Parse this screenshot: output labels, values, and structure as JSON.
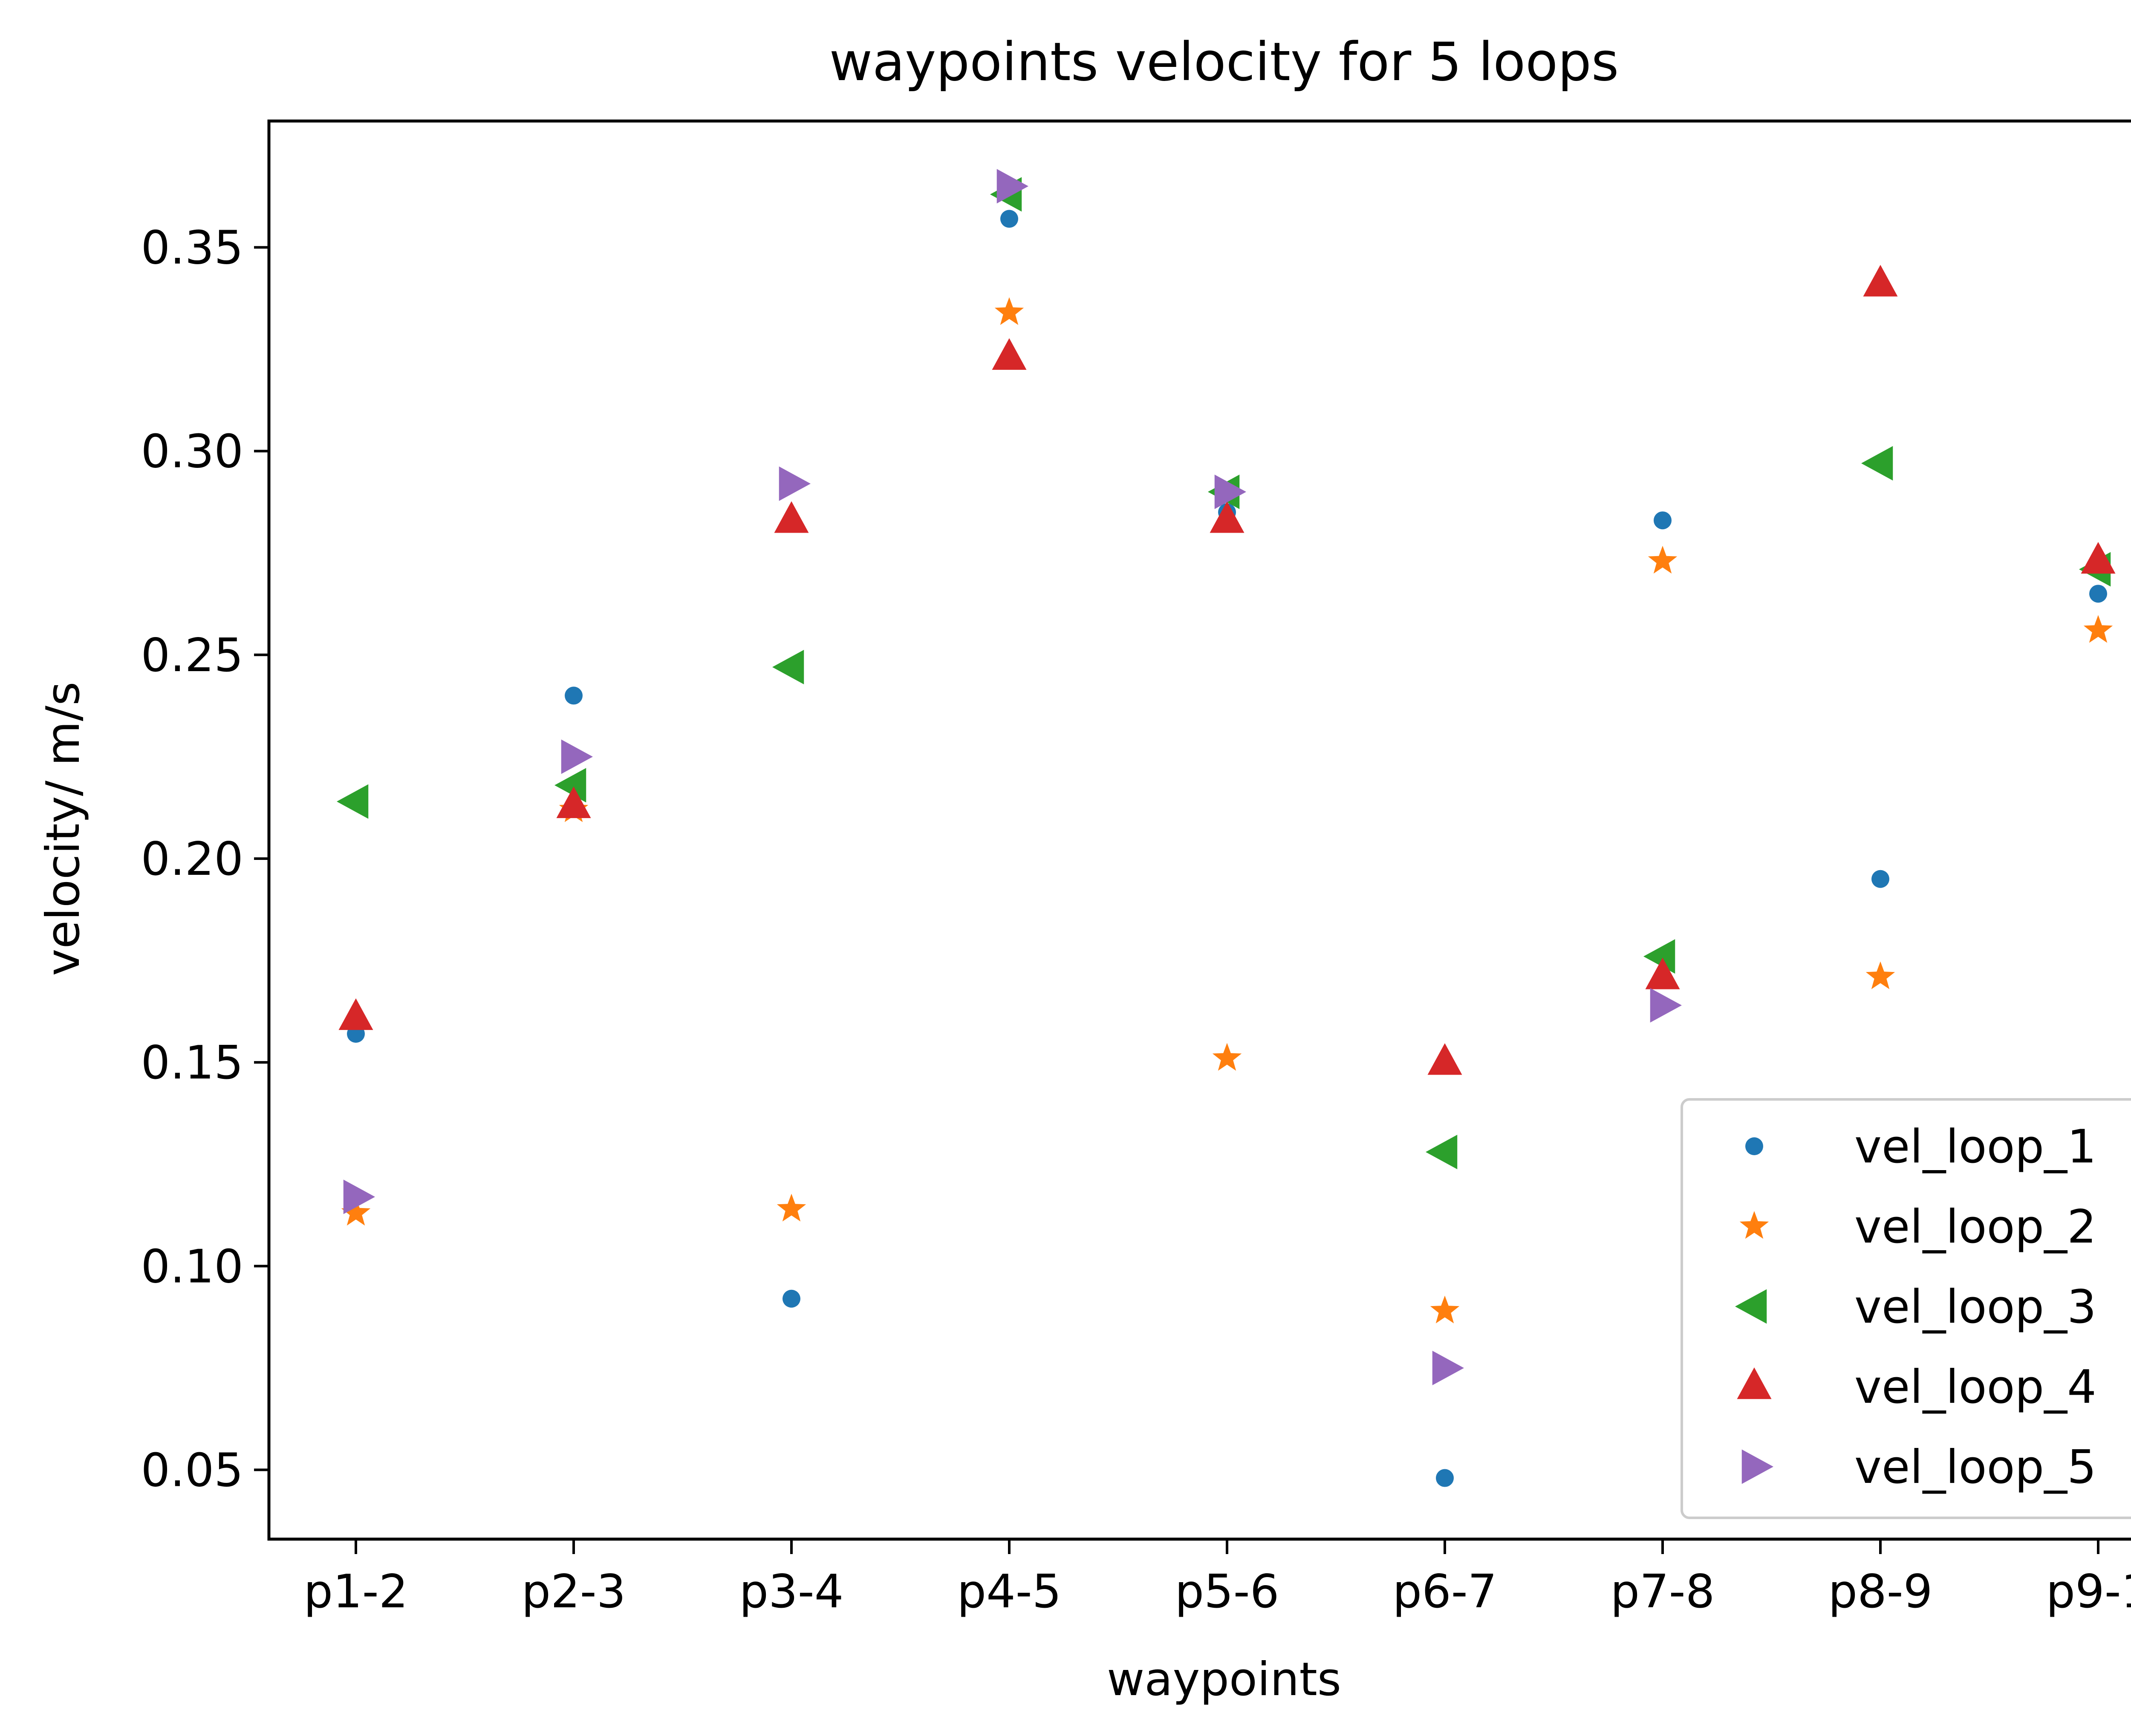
{
  "colors": {
    "vel_loop_1": "#1f77b4",
    "vel_loop_2": "#ff7f0e",
    "vel_loop_3": "#2ca02c",
    "vel_loop_4": "#d62728",
    "vel_loop_5": "#9467bd"
  },
  "chart_data": {
    "type": "scatter",
    "title": "waypoints velocity for 5 loops",
    "xlabel": "waypoints",
    "ylabel": "velocity/ m/s",
    "categories": [
      "p1-2",
      "p2-3",
      "p3-4",
      "p4-5",
      "p5-6",
      "p6-7",
      "p7-8",
      "p8-9",
      "p9-1"
    ],
    "ylim": [
      0.033,
      0.381
    ],
    "yticks": [
      0.05,
      0.1,
      0.15,
      0.2,
      0.25,
      0.3,
      0.35
    ],
    "ytick_labels": [
      "0.05",
      "0.10",
      "0.15",
      "0.20",
      "0.25",
      "0.30",
      "0.35"
    ],
    "grid": false,
    "legend_position": "lower right",
    "series": [
      {
        "name": "vel_loop_1",
        "marker": "circle",
        "values": [
          0.157,
          0.24,
          0.092,
          0.357,
          0.285,
          0.048,
          0.283,
          0.195,
          0.265
        ]
      },
      {
        "name": "vel_loop_2",
        "marker": "star",
        "values": [
          0.113,
          0.212,
          0.114,
          0.334,
          0.151,
          0.089,
          0.273,
          0.171,
          0.256
        ]
      },
      {
        "name": "vel_loop_3",
        "marker": "triangle-left",
        "values": [
          0.214,
          0.218,
          0.247,
          0.363,
          0.29,
          0.128,
          0.176,
          0.297,
          0.271
        ]
      },
      {
        "name": "vel_loop_4",
        "marker": "triangle-up",
        "values": [
          0.161,
          0.213,
          0.283,
          0.323,
          0.283,
          0.15,
          0.171,
          0.341,
          0.273
        ]
      },
      {
        "name": "vel_loop_5",
        "marker": "triangle-right",
        "values": [
          0.117,
          0.225,
          0.292,
          0.365,
          0.29,
          0.075,
          0.164,
          null,
          null
        ]
      }
    ]
  }
}
